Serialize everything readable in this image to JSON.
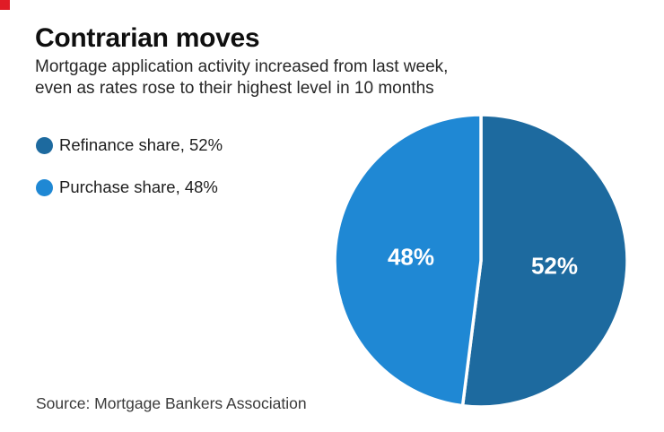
{
  "brand": {
    "corner_color": "#e01b26"
  },
  "header": {
    "title": "Contrarian moves",
    "subtitle_line1": "Mortgage application activity increased from last week,",
    "subtitle_line2": "even as rates rose to their highest level in 10 months"
  },
  "legend": {
    "items": [
      {
        "label": "Refinance share, 52%",
        "color": "#1d6a9f"
      },
      {
        "label": "Purchase share, 48%",
        "color": "#1f88d4"
      }
    ]
  },
  "chart_data": {
    "type": "pie",
    "title": "Contrarian moves",
    "subtitle": "Mortgage application activity increased from last week, even as rates rose to their highest level in 10 months",
    "slices": [
      {
        "name": "Refinance share",
        "value": 52,
        "label": "52%",
        "color": "#1d6a9f"
      },
      {
        "name": "Purchase share",
        "value": 48,
        "label": "48%",
        "color": "#1f88d4"
      }
    ],
    "start_angle_deg": 0,
    "direction": "clockwise",
    "divider_color": "#ffffff",
    "label_color": "#ffffff",
    "legend_position": "left"
  },
  "footer": {
    "source": "Source: Mortgage Bankers Association"
  }
}
